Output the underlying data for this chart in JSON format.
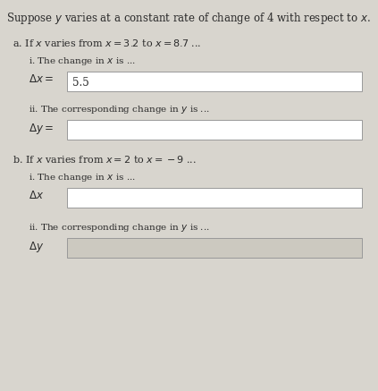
{
  "bg_color": "#d8d5ce",
  "text_color": "#2a2a2a",
  "title": "Suppose $y$ varies at a constant rate of change of 4 with respect to $x$.",
  "part_a_header": "a. If $x$ varies from $x = 3.2$ to $x = 8.7$ ...",
  "part_a_i_label": "i. The change in $x$ is ...",
  "part_a_i_delta": "$\\Delta x =$",
  "part_a_i_value": "5.5",
  "part_a_ii_label": "ii. The corresponding change in $y$ is ...",
  "part_a_ii_delta": "$\\Delta y =$",
  "part_b_header": "b. If $x$ varies from $x = 2$ to $x = -9$ ...",
  "part_b_i_label": "i. The change in $x$ is ...",
  "part_b_i_delta": "$\\Delta x$",
  "part_b_ii_label": "ii. The corresponding change in $y$ is ...",
  "part_b_ii_delta": "$\\Delta y$",
  "box_color": "#ffffff",
  "box_color_gray": "#ccc9c0",
  "box_edge_color": "#999999",
  "font_size_title": 8.5,
  "font_size_header": 8.0,
  "font_size_label": 7.5,
  "font_size_delta": 8.5,
  "font_size_box_value": 8.5
}
